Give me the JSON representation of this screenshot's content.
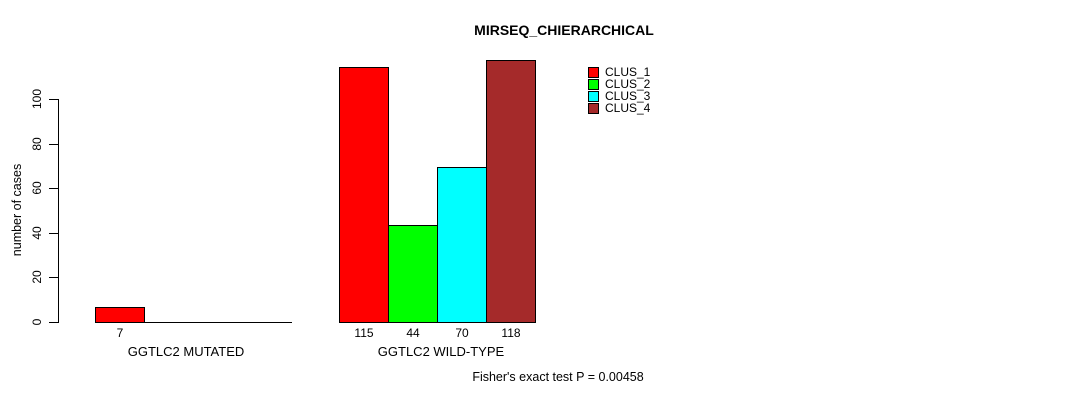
{
  "chart_data": {
    "type": "bar",
    "title": "MIRSEQ_CHIERARCHICAL",
    "ylabel": "number of cases",
    "xlabel": "",
    "yticks": [
      0,
      20,
      40,
      60,
      80,
      100
    ],
    "ylim": [
      0,
      120
    ],
    "grid": false,
    "series_names": [
      "CLUS_1",
      "CLUS_2",
      "CLUS_3",
      "CLUS_4"
    ],
    "colors": [
      "#ff0000",
      "#00ff00",
      "#00ffff",
      "#a52a2a"
    ],
    "bar_border_color": "#000000",
    "groups": [
      {
        "label": "GGTLC2 MUTATED",
        "values": [
          7,
          0,
          0,
          0
        ],
        "bar_labels": [
          "7",
          "",
          "",
          ""
        ]
      },
      {
        "label": "GGTLC2 WILD-TYPE",
        "values": [
          115,
          44,
          70,
          118
        ],
        "bar_labels": [
          "115",
          "44",
          "70",
          "118"
        ]
      }
    ],
    "legend": {
      "position": "top-right",
      "entries": [
        "CLUS_1",
        "CLUS_2",
        "CLUS_3",
        "CLUS_4"
      ]
    },
    "annotation": "Fisher's exact test P = 0.00458"
  }
}
